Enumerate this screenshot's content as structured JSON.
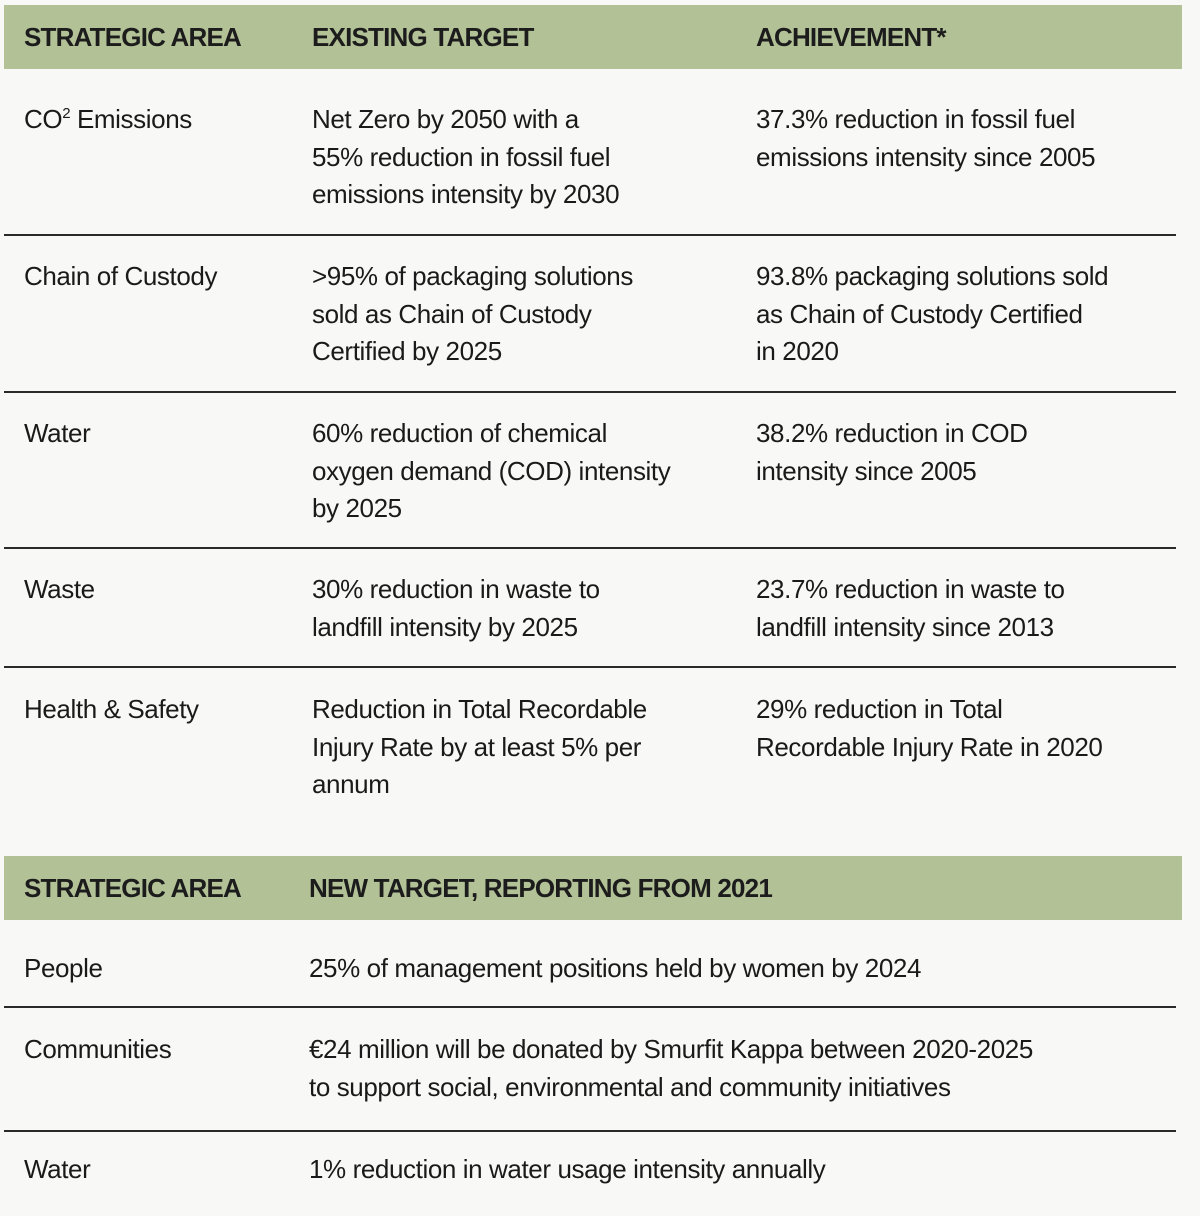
{
  "table1": {
    "headers": [
      "STRATEGIC AREA",
      "EXISTING TARGET",
      "ACHIEVEMENT*"
    ],
    "rows": [
      {
        "area": "CO",
        "area_sup": "2",
        "area_rest": " Emissions",
        "target": "Net Zero by 2050 with a\n55% reduction in fossil fuel\nemissions intensity by 2030",
        "achievement": "37.3% reduction in fossil fuel\nemissions intensity since 2005"
      },
      {
        "area": "Chain of Custody",
        "target": ">95% of packaging solutions\nsold as  Chain of Custody\nCertified by 2025",
        "achievement": "93.8% packaging solutions sold\nas Chain of Custody Certified\nin 2020"
      },
      {
        "area": "Water",
        "target": "60% reduction of chemical\noxygen demand (COD) intensity\nby 2025",
        "achievement": "38.2% reduction in COD\nintensity since 2005"
      },
      {
        "area": "Waste",
        "target": "30% reduction in waste to\nlandfill intensity by 2025",
        "achievement": "23.7% reduction in waste to\nlandfill intensity since 2013"
      },
      {
        "area": "Health & Safety",
        "target": "Reduction in Total Recordable\nInjury Rate by at least 5% per\nannum",
        "achievement": "29% reduction in Total\nRecordable Injury Rate in 2020"
      }
    ]
  },
  "table2": {
    "headers": [
      "STRATEGIC AREA",
      "NEW TARGET, REPORTING FROM 2021"
    ],
    "rows": [
      {
        "area": "People",
        "target": "25% of management positions held by women by 2024"
      },
      {
        "area": "Communities",
        "target": "€24 million will be donated by Smurfit Kappa between 2020-2025\nto support social, environmental and community initiatives"
      },
      {
        "area": "Water",
        "target": "1% reduction in water usage intensity annually"
      }
    ]
  },
  "colors": {
    "header_bg": "#b2c196",
    "page_bg": "#f8f8f6"
  }
}
